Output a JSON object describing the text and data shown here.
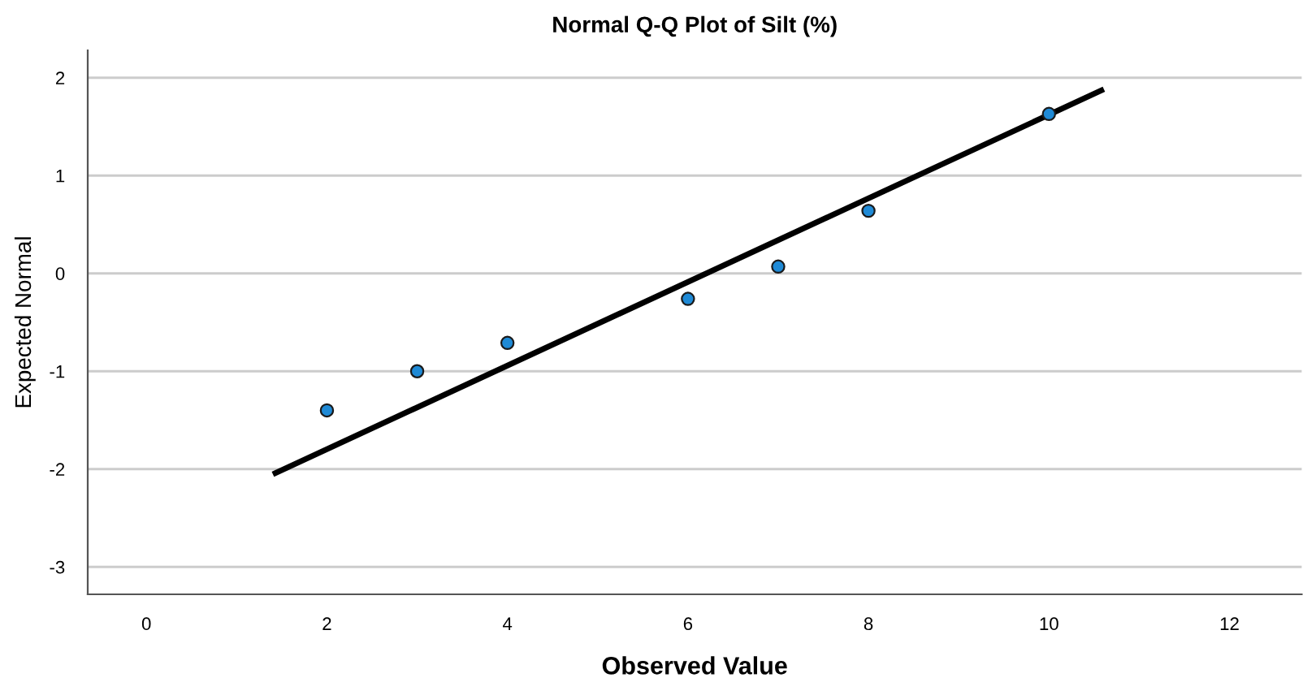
{
  "chart_data": {
    "type": "scatter",
    "title": "Normal Q-Q Plot of Silt (%)",
    "xlabel": "Observed Value",
    "ylabel": "Expected Normal",
    "series": [
      {
        "color": "#1f8ad6",
        "marker": "circle",
        "x": [
          2,
          3,
          4,
          6,
          7,
          8,
          10
        ],
        "values": [
          -1.4,
          -1.0,
          -0.71,
          -0.26,
          0.07,
          0.64,
          1.63
        ]
      },
      {
        "type": "line",
        "color": "#000000",
        "x": [
          1.43,
          10.58
        ],
        "values": [
          -2.04,
          1.87
        ]
      }
    ],
    "xlim": [
      -0.65,
      12.8
    ],
    "ylim": [
      -3.28,
      2.28
    ],
    "xticks": [
      0,
      2,
      4,
      6,
      8,
      10,
      12
    ],
    "yticks": [
      -3,
      -2,
      -1,
      0,
      1,
      2
    ],
    "grid": "y"
  }
}
